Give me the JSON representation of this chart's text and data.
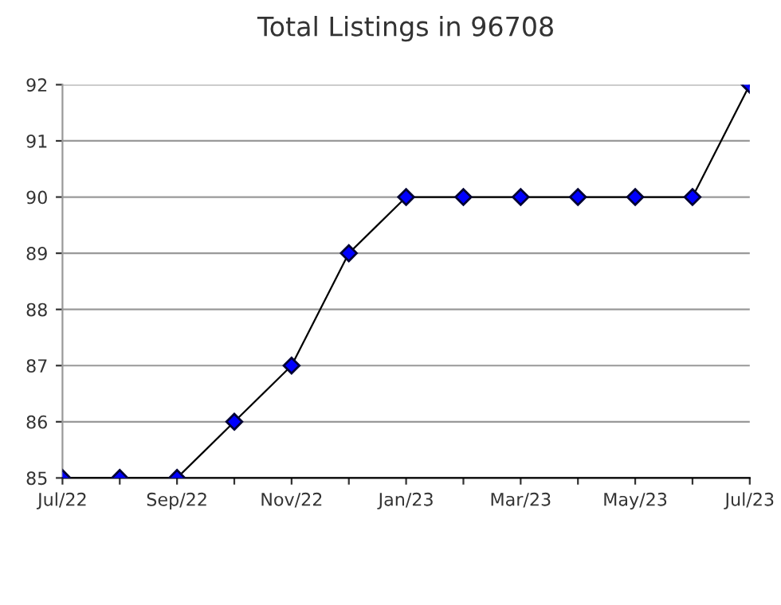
{
  "chart_data": {
    "type": "line",
    "title": "Total Listings in 96708",
    "categories": [
      "Jul/22",
      null,
      "Sep/22",
      null,
      "Nov/22",
      null,
      "Jan/23",
      null,
      "Mar/23",
      null,
      "May/23",
      null,
      "Jul/23"
    ],
    "series": [
      {
        "color": "#0000ff",
        "values": [
          85,
          85,
          85,
          86,
          87,
          89,
          90,
          90,
          90,
          90,
          90,
          90,
          92
        ]
      }
    ],
    "ylim": [
      85,
      92
    ],
    "yticks": [
      85,
      86,
      87,
      88,
      89,
      90,
      91,
      92
    ],
    "grid": "y",
    "marker": "diamond",
    "line_style": "solid",
    "legend": false
  }
}
